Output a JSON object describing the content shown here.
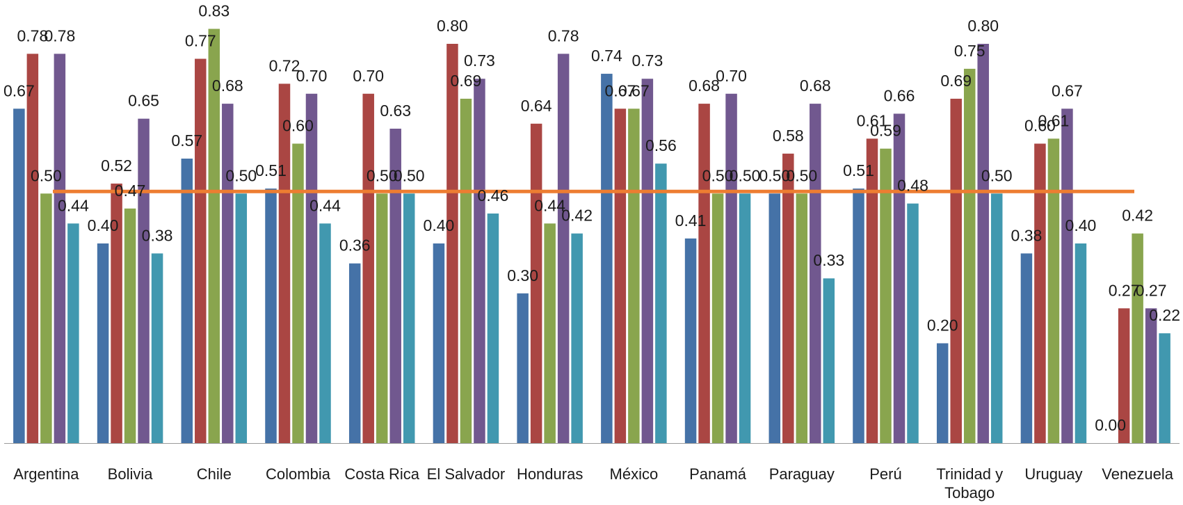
{
  "chart_data": {
    "type": "bar",
    "categories": [
      [
        "Argentina"
      ],
      [
        "Bolivia"
      ],
      [
        "Chile"
      ],
      [
        "Colombia"
      ],
      [
        "Costa Rica"
      ],
      [
        "El Salvador"
      ],
      [
        "Honduras"
      ],
      [
        "México"
      ],
      [
        "Panamá"
      ],
      [
        "Paraguay"
      ],
      [
        "Perú"
      ],
      [
        "Trinidad y",
        "Tobago"
      ],
      [
        "Uruguay"
      ],
      [
        "Venezuela"
      ]
    ],
    "series": [
      {
        "color": "#4572a7",
        "values": [
          0.67,
          0.4,
          0.57,
          0.51,
          0.36,
          0.4,
          0.3,
          0.74,
          0.41,
          0.5,
          0.51,
          0.2,
          0.38,
          0.0
        ]
      },
      {
        "color": "#aa4643",
        "values": [
          0.78,
          0.52,
          0.77,
          0.72,
          0.7,
          0.8,
          0.64,
          0.67,
          0.68,
          0.58,
          0.61,
          0.69,
          0.6,
          0.27
        ]
      },
      {
        "color": "#89a54e",
        "values": [
          0.5,
          0.47,
          0.83,
          0.6,
          0.5,
          0.69,
          0.44,
          0.67,
          0.5,
          0.5,
          0.59,
          0.75,
          0.61,
          0.42
        ]
      },
      {
        "color": "#71588f",
        "values": [
          0.78,
          0.65,
          0.68,
          0.7,
          0.63,
          0.73,
          0.78,
          0.73,
          0.7,
          0.68,
          0.66,
          0.8,
          0.67,
          0.27
        ]
      },
      {
        "color": "#4198af",
        "values": [
          0.44,
          0.38,
          0.5,
          0.44,
          0.5,
          0.46,
          0.42,
          0.56,
          0.5,
          0.33,
          0.48,
          0.5,
          0.4,
          0.22
        ]
      }
    ],
    "reference_line": {
      "value": 0.5,
      "color": "#ed7d31"
    },
    "ylim": [
      0,
      0.83
    ],
    "show_value_labels": true,
    "value_format": "2 decimals",
    "grid": false,
    "legend": "none",
    "title": "",
    "xlabel": "",
    "ylabel": ""
  }
}
